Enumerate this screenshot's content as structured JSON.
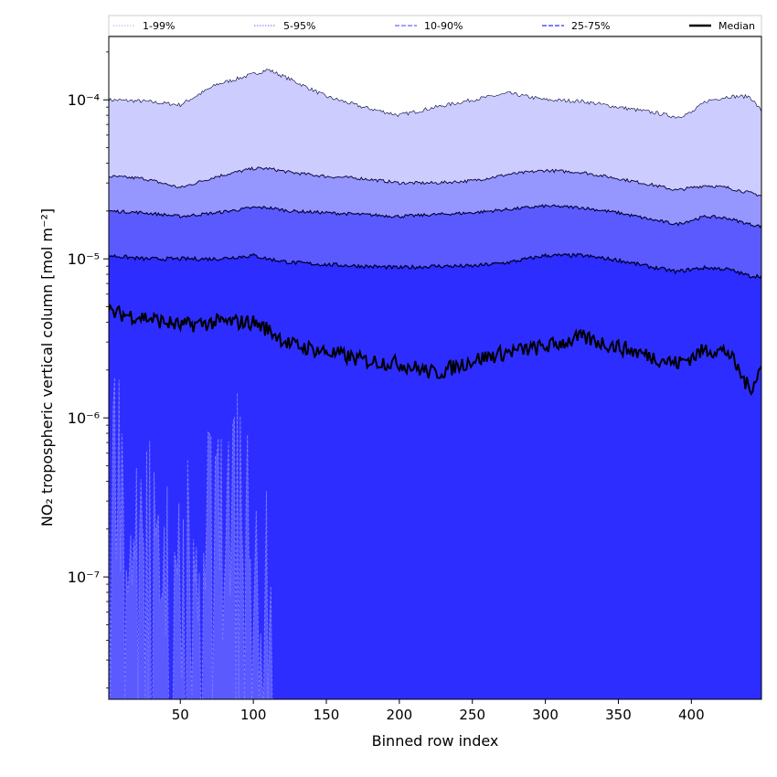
{
  "chart_data": {
    "type": "area",
    "xlabel": "Binned row index",
    "ylabel": "NO₂ tropospheric vertical column [mol m⁻²]",
    "xlim": [
      1,
      448
    ],
    "ylim": [
      1.7e-08,
      0.00025
    ],
    "yscale": "log",
    "x_ticks": [
      50,
      100,
      150,
      200,
      250,
      300,
      350,
      400
    ],
    "y_ticks": [
      {
        "value": 1e-07,
        "label": "10⁻⁷"
      },
      {
        "value": 1e-06,
        "label": "10⁻⁶"
      },
      {
        "value": 1e-05,
        "label": "10⁻⁵"
      },
      {
        "value": 0.0001,
        "label": "10⁻⁴"
      }
    ],
    "legend_position": "top",
    "legend": [
      {
        "label": "1-99%",
        "color": "#ccccff",
        "style": "dotted"
      },
      {
        "label": "5-95%",
        "color": "#9999ff",
        "style": "dotted"
      },
      {
        "label": "10-90%",
        "color": "#8080ff",
        "style": "dashed"
      },
      {
        "label": "25-75%",
        "color": "#5050ff",
        "style": "dashed"
      },
      {
        "label": "Median",
        "color": "#000000",
        "style": "solid"
      }
    ],
    "x": [
      1,
      25,
      50,
      75,
      100,
      110,
      125,
      150,
      175,
      200,
      225,
      250,
      275,
      300,
      325,
      350,
      375,
      390,
      400,
      410,
      425,
      440,
      448
    ],
    "series": [
      {
        "name": "99%",
        "values": [
          0.0001,
          9.8e-05,
          9.3e-05,
          0.000125,
          0.000145,
          0.000155,
          0.000135,
          0.000105,
          9e-05,
          8e-05,
          9e-05,
          0.0001,
          0.00011,
          0.0001,
          9.8e-05,
          9e-05,
          8.3e-05,
          7.8e-05,
          8.3e-05,
          9.8e-05,
          0.000105,
          0.000105,
          8.5e-05
        ]
      },
      {
        "name": "95%",
        "values": [
          3.3e-05,
          3.2e-05,
          2.8e-05,
          3.3e-05,
          3.7e-05,
          3.7e-05,
          3.5e-05,
          3.3e-05,
          3.2e-05,
          3e-05,
          3e-05,
          3.1e-05,
          3.4e-05,
          3.6e-05,
          3.5e-05,
          3.2e-05,
          2.9e-05,
          2.7e-05,
          2.8e-05,
          2.9e-05,
          2.8e-05,
          2.6e-05,
          2.5e-05
        ]
      },
      {
        "name": "90%",
        "values": [
          2e-05,
          1.95e-05,
          1.85e-05,
          1.95e-05,
          2.1e-05,
          2.1e-05,
          2e-05,
          1.95e-05,
          1.9e-05,
          1.85e-05,
          1.9e-05,
          1.95e-05,
          2.05e-05,
          2.15e-05,
          2.1e-05,
          1.95e-05,
          1.75e-05,
          1.65e-05,
          1.75e-05,
          1.85e-05,
          1.8e-05,
          1.65e-05,
          1.6e-05
        ]
      },
      {
        "name": "75%",
        "values": [
          1.05e-05,
          1e-05,
          1e-05,
          1e-05,
          1.05e-05,
          1e-05,
          9.5e-06,
          9.2e-06,
          9e-06,
          8.8e-06,
          9e-06,
          9e-06,
          9.5e-06,
          1.05e-05,
          1.05e-05,
          9.8e-06,
          8.8e-06,
          8.3e-06,
          8.6e-06,
          8.8e-06,
          8.6e-06,
          7.8e-06,
          7.8e-06
        ]
      },
      {
        "name": "Median",
        "values": [
          4.6e-06,
          4.3e-06,
          3.8e-06,
          4e-06,
          4e-06,
          3.6e-06,
          2.9e-06,
          2.6e-06,
          2.3e-06,
          2.2e-06,
          1.9e-06,
          2.3e-06,
          2.6e-06,
          2.8e-06,
          3.2e-06,
          2.8e-06,
          2.4e-06,
          2.2e-06,
          2.4e-06,
          2.7e-06,
          2.6e-06,
          1.5e-06,
          2.1e-06
        ]
      },
      {
        "name": "1%",
        "x": [
          1,
          5,
          10,
          15,
          20,
          25,
          30,
          35,
          40,
          45,
          50,
          55,
          60,
          65,
          70,
          75,
          80,
          85,
          90,
          95,
          100,
          105,
          110,
          115
        ],
        "values": [
          9e-07,
          1e-06,
          7e-07,
          6e-07,
          5e-07,
          7e-07,
          4e-07,
          1e-07,
          2e-07,
          5e-08,
          1.5e-07,
          2e-07,
          1e-07,
          3e-07,
          4e-07,
          4e-07,
          3e-07,
          4e-07,
          5e-07,
          6e-07,
          3e-07,
          2e-07,
          1e-07,
          2.5e-08
        ]
      }
    ]
  }
}
